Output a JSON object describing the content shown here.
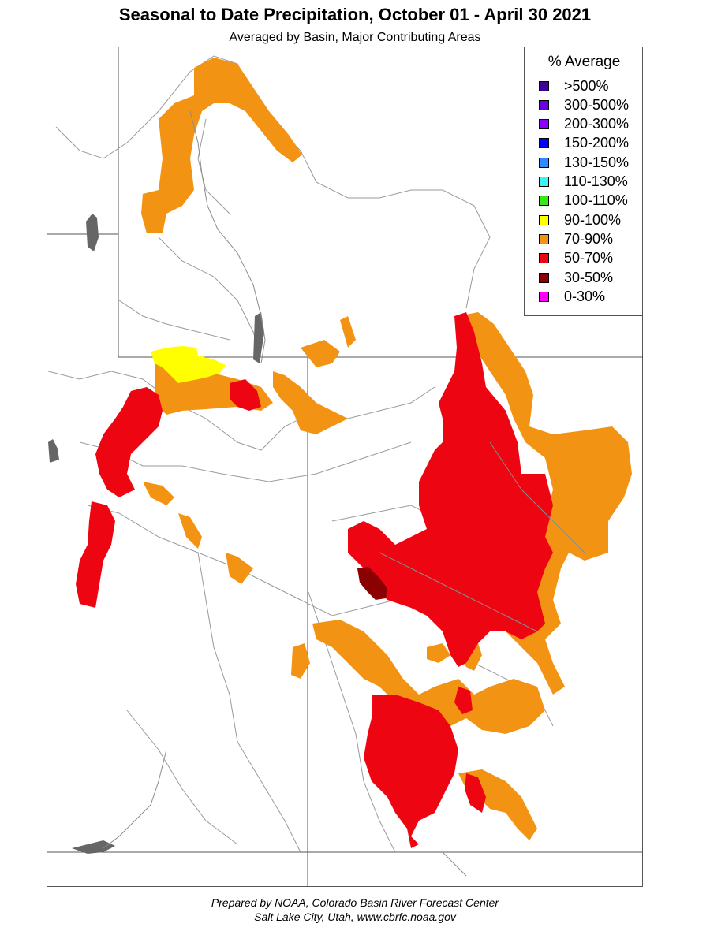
{
  "header": {
    "title": "Seasonal to Date Precipitation, October 01  - April 30 2021",
    "subtitle": "Averaged by Basin, Major Contributing Areas"
  },
  "legend": {
    "title": "% Average",
    "items": [
      {
        "label": ">500%",
        "color": "#3d0099"
      },
      {
        "label": "300-500%",
        "color": "#6a00e0"
      },
      {
        "label": "200-300%",
        "color": "#8a00ff"
      },
      {
        "label": "150-200%",
        "color": "#0000ff"
      },
      {
        "label": "130-150%",
        "color": "#2e8bff"
      },
      {
        "label": "110-130%",
        "color": "#3cf2f2"
      },
      {
        "label": "100-110%",
        "color": "#3ce617"
      },
      {
        "label": "90-100%",
        "color": "#ffff00"
      },
      {
        "label": "70-90%",
        "color": "#f39313"
      },
      {
        "label": "50-70%",
        "color": "#ee0512"
      },
      {
        "label": "30-50%",
        "color": "#8b0000"
      },
      {
        "label": "0-30%",
        "color": "#ff00ff"
      }
    ]
  },
  "footer": {
    "line1": "Prepared by NOAA, Colorado Basin River Forecast Center",
    "line2": "Salt Lake City, Utah, www.cbrfc.noaa.gov"
  }
}
